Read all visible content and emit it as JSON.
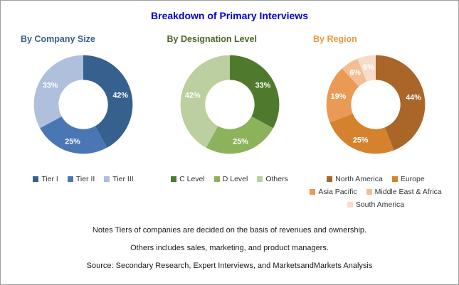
{
  "title": "Breakdown of Primary Interviews",
  "colors": {
    "title": "#0000CC",
    "border": "#9E9E9E",
    "segment_label": "#FFFFFF",
    "legend_text": "#333333",
    "note_text": "#1A1A1A"
  },
  "notes": [
    "Notes Tiers of companies are decided on the basis of revenues and ownership.",
    "Others includes sales, marketing, and product managers.",
    "Source: Secondary Research, Expert Interviews, and MarketsandMarkets Analysis"
  ],
  "chart_data": [
    {
      "type": "pie",
      "donut": true,
      "title": "By Company Size",
      "title_color": "#366092",
      "legend_position": "bottom",
      "start_angle": "top",
      "direction": "clockwise",
      "segments": [
        {
          "label": "Tier I",
          "value": 42,
          "color": "#36618E"
        },
        {
          "label": "Tier II",
          "value": 25,
          "color": "#4A77B4"
        },
        {
          "label": "Tier III",
          "value": 33,
          "color": "#AFC0DD"
        }
      ]
    },
    {
      "type": "pie",
      "donut": true,
      "title": "By Designation Level",
      "title_color": "#4F6228",
      "legend_position": "bottom",
      "start_angle": "top",
      "direction": "clockwise",
      "segments": [
        {
          "label": "C Level",
          "value": 33,
          "color": "#4F7A2E"
        },
        {
          "label": "D Level",
          "value": 25,
          "color": "#8DB25C"
        },
        {
          "label": "Others",
          "value": 42,
          "color": "#BCCFA0"
        }
      ]
    },
    {
      "type": "pie",
      "donut": true,
      "title": "By Region",
      "title_color": "#E79B3F",
      "legend_position": "bottom",
      "start_angle": "top",
      "direction": "clockwise",
      "segments": [
        {
          "label": "North America",
          "value": 44,
          "color": "#AA6528"
        },
        {
          "label": "Europe",
          "value": 25,
          "color": "#D5822F"
        },
        {
          "label": "Asia Pacific",
          "value": 19,
          "color": "#EA9A54"
        },
        {
          "label": "Middle East & Africa",
          "value": 6,
          "color": "#F3BE94"
        },
        {
          "label": "South America",
          "value": 6,
          "color": "#F8DCCB"
        }
      ]
    }
  ]
}
